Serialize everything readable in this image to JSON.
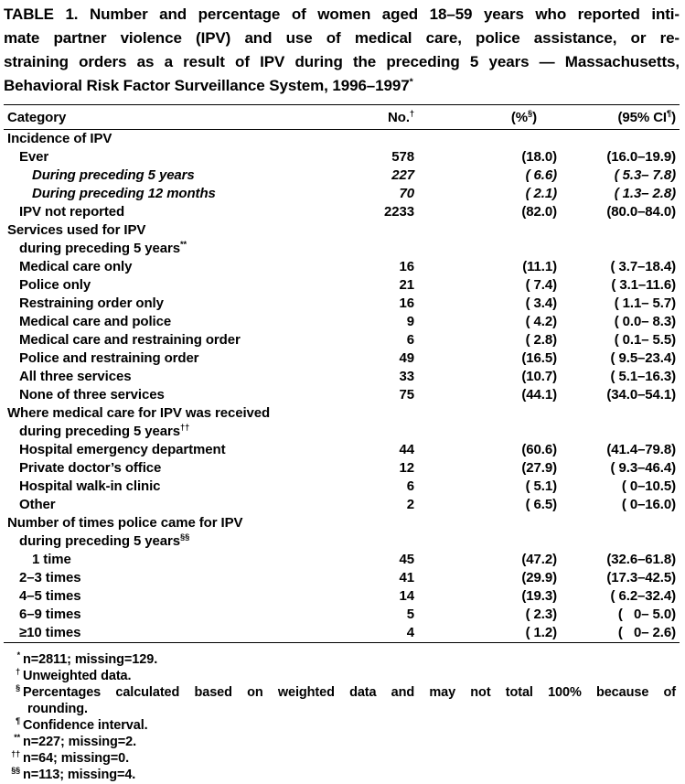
{
  "table": {
    "title_lines": [
      "TABLE 1. Number and percentage of women aged 18–59 years who reported inti-",
      "mate partner violence (IPV) and use of medical care, police assistance, or re-",
      "straining orders as a result of IPV during the preceding 5 years — Massachusetts,",
      "Behavioral Risk Factor Surveillance System, 1996–1997"
    ],
    "title_sup": "*",
    "header": {
      "category": "Category",
      "no_label": "No.",
      "no_sup": "†",
      "pct_open": "(%",
      "pct_sup": "§",
      "pct_close": ")",
      "ci_open": "(95% CI",
      "ci_sup": "¶",
      "ci_close": ")"
    },
    "rows": [
      {
        "label": "Incidence of IPV",
        "indent": 0
      },
      {
        "label": "Ever",
        "indent": 1,
        "no": "578",
        "pct": "(18.0)",
        "ci": "(16.0–19.9)"
      },
      {
        "label": "During preceding 5 years",
        "indent": 2,
        "italic": true,
        "no": "227",
        "pct": "( 6.6)",
        "ci": "( 5.3– 7.8)"
      },
      {
        "label": "During preceding 12 months",
        "indent": 2,
        "italic": true,
        "no": "70",
        "pct": "( 2.1)",
        "ci": "( 1.3– 2.8)"
      },
      {
        "label": "IPV not reported",
        "indent": 1,
        "no": "2233",
        "pct": "(82.0)",
        "ci": "(80.0–84.0)"
      },
      {
        "label": "Services used for IPV",
        "indent": 0
      },
      {
        "label": "during preceding 5 years",
        "sup": "**",
        "indent": 1
      },
      {
        "label": "Medical care only",
        "indent": 1,
        "no": "16",
        "pct": "(11.1)",
        "ci": "( 3.7–18.4)"
      },
      {
        "label": "Police only",
        "indent": 1,
        "no": "21",
        "pct": "( 7.4)",
        "ci": "( 3.1–11.6)"
      },
      {
        "label": "Restraining order only",
        "indent": 1,
        "no": "16",
        "pct": "( 3.4)",
        "ci": "( 1.1– 5.7)"
      },
      {
        "label": "Medical care and police",
        "indent": 1,
        "no": "9",
        "pct": "( 4.2)",
        "ci": "( 0.0– 8.3)"
      },
      {
        "label": "Medical care and restraining order",
        "indent": 1,
        "no": "6",
        "pct": "( 2.8)",
        "ci": "( 0.1– 5.5)"
      },
      {
        "label": "Police and restraining order",
        "indent": 1,
        "no": "49",
        "pct": "(16.5)",
        "ci": "( 9.5–23.4)"
      },
      {
        "label": "All three services",
        "indent": 1,
        "no": "33",
        "pct": "(10.7)",
        "ci": "( 5.1–16.3)"
      },
      {
        "label": "None of three services",
        "indent": 1,
        "no": "75",
        "pct": "(44.1)",
        "ci": "(34.0–54.1)"
      },
      {
        "label": "Where medical care for IPV was received",
        "indent": 0
      },
      {
        "label": "during preceding 5 years",
        "sup": "††",
        "indent": 1
      },
      {
        "label": "Hospital emergency department",
        "indent": 1,
        "no": "44",
        "pct": "(60.6)",
        "ci": "(41.4–79.8)"
      },
      {
        "label": "Private doctor’s office",
        "indent": 1,
        "no": "12",
        "pct": "(27.9)",
        "ci": "( 9.3–46.4)"
      },
      {
        "label": "Hospital walk-in clinic",
        "indent": 1,
        "no": "6",
        "pct": "( 5.1)",
        "ci": "( 0–10.5)"
      },
      {
        "label": "Other",
        "indent": 1,
        "no": "2",
        "pct": "( 6.5)",
        "ci": "( 0–16.0)"
      },
      {
        "label": "Number of times police came for IPV",
        "indent": 0
      },
      {
        "label": "during preceding 5 years",
        "sup": "§§",
        "indent": 1
      },
      {
        "label": "1 time",
        "indent": 2,
        "no": "45",
        "pct": "(47.2)",
        "ci": "(32.6–61.8)"
      },
      {
        "label": "2–3 times",
        "indent": 1,
        "no": "41",
        "pct": "(29.9)",
        "ci": "(17.3–42.5)"
      },
      {
        "label": "4–5 times",
        "indent": 1,
        "no": "14",
        "pct": "(19.3)",
        "ci": "( 6.2–32.4)"
      },
      {
        "label": "6–9 times",
        "indent": 1,
        "no": "5",
        "pct": "( 2.3)",
        "ci": "(   0– 5.0)"
      },
      {
        "label": "≥10 times",
        "indent": 1,
        "no": "4",
        "pct": "( 1.2)",
        "ci": "(   0– 2.6)"
      }
    ],
    "footnotes": [
      {
        "marker": "*",
        "text": "n=2811; missing=129."
      },
      {
        "marker": "†",
        "text": "Unweighted data."
      },
      {
        "marker": "§",
        "text": "Percentages calculated based on weighted data and may not total 100% because of",
        "text2": "rounding."
      },
      {
        "marker": "¶",
        "text": "Confidence interval."
      },
      {
        "marker": "**",
        "text": "n=227; missing=2."
      },
      {
        "marker": "††",
        "text": "n=64; missing=0."
      },
      {
        "marker": "§§",
        "text": "n=113; missing=4."
      }
    ]
  }
}
